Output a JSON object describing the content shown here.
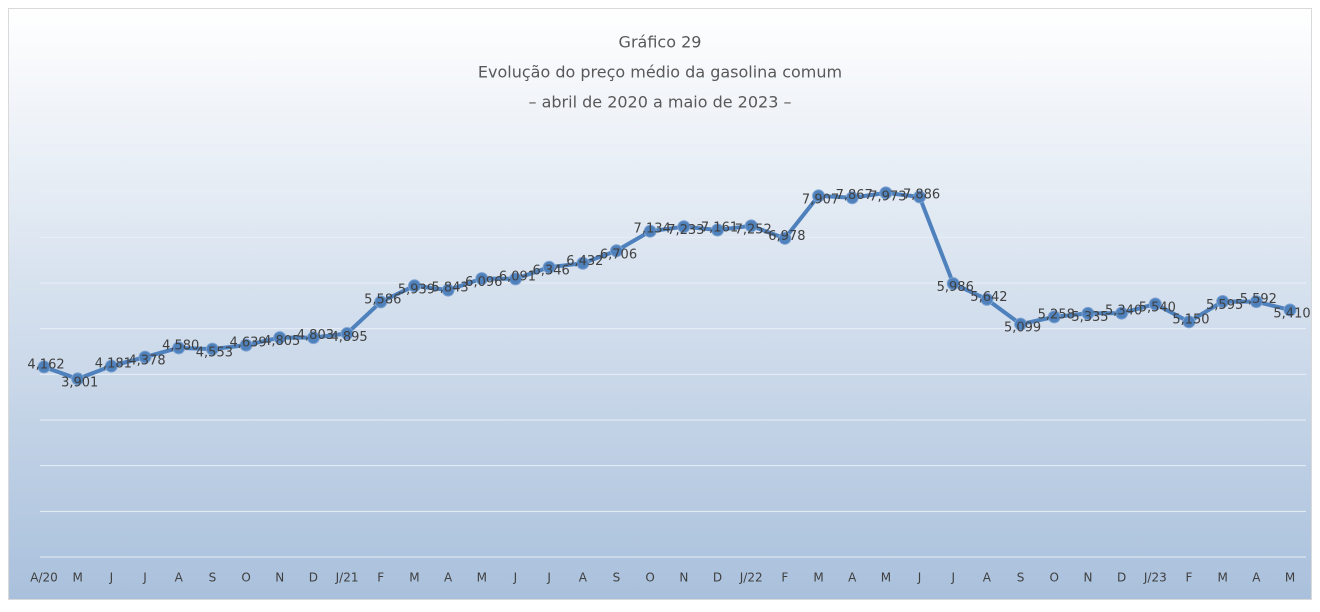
{
  "chart_data": {
    "type": "line",
    "title": "Gráfico 29",
    "subtitle": "Evolução do preço médio da gasolina comum",
    "subtitle2": "– abril de 2020 a maio de 2023 –",
    "categories": [
      "A/20",
      "M",
      "J",
      "J",
      "A",
      "S",
      "O",
      "N",
      "D",
      "J/21",
      "F",
      "M",
      "A",
      "M",
      "J",
      "J",
      "A",
      "S",
      "O",
      "N",
      "D",
      "J/22",
      "F",
      "M",
      "A",
      "M",
      "J",
      "J",
      "A",
      "S",
      "O",
      "N",
      "D",
      "J/23",
      "F",
      "M",
      "A",
      "M"
    ],
    "series": [
      {
        "name": "Gasolina comum",
        "color": "#4f81bd",
        "values": [
          4.162,
          3.901,
          4.181,
          4.378,
          4.58,
          4.553,
          4.639,
          4.805,
          4.803,
          4.895,
          5.586,
          5.939,
          5.843,
          6.096,
          6.091,
          6.346,
          6.432,
          6.706,
          7.134,
          7.233,
          7.161,
          7.252,
          6.978,
          7.907,
          7.867,
          7.973,
          7.886,
          5.986,
          5.642,
          5.099,
          5.258,
          5.335,
          5.34,
          5.54,
          5.15,
          5.595,
          5.592,
          5.41
        ],
        "value_labels": [
          "4,162",
          "3,901",
          "4,181",
          "4,378",
          "4,580",
          "4,553",
          "4,639",
          "4,805",
          "4,803",
          "4,895",
          "5,586",
          "5,939",
          "5,843",
          "6,096",
          "6,091",
          "6,346",
          "6,432",
          "6,706",
          "7,134",
          "7,233",
          "7,161",
          "7,252",
          "6,978",
          "7,907",
          "7,867",
          "7,973",
          "7,886",
          "5,986",
          "5,642",
          "5,099",
          "5,258",
          "5,335",
          "5,340",
          "5,540",
          "5,150",
          "5,595",
          "5,592",
          "5,410"
        ]
      }
    ],
    "ylim": [
      0,
      9
    ],
    "yticks": [
      0,
      1,
      2,
      3,
      4,
      5,
      6,
      7,
      8,
      9
    ],
    "grid": true
  }
}
